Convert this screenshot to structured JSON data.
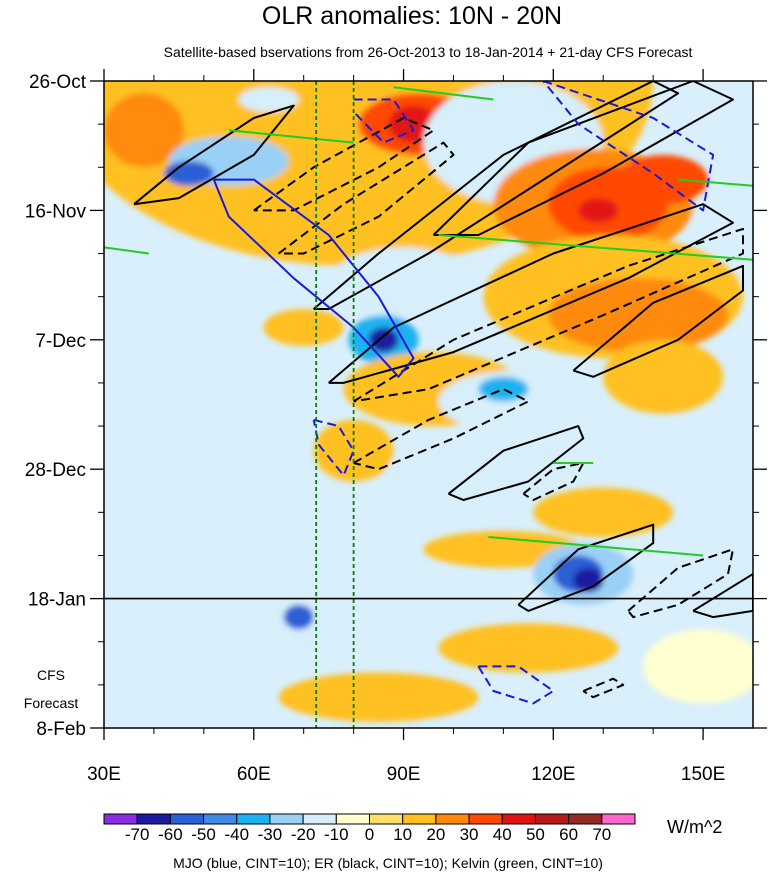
{
  "chart_data": {
    "type": "heatmap",
    "title": "OLR anomalies: 10N - 20N",
    "subtitle": "Satellite-based bservations from 26-Oct-2013 to 18-Jan-2014 + 21-day CFS Forecast",
    "x_tick_labels": [
      "30E",
      "60E",
      "90E",
      "120E",
      "150E"
    ],
    "x_ticks": [
      30,
      60,
      90,
      120,
      150
    ],
    "xlim": [
      30,
      160
    ],
    "y_tick_labels": [
      "26-Oct",
      "16-Nov",
      "7-Dec",
      "28-Dec",
      "18-Jan",
      "8-Feb"
    ],
    "y_ticks_day": [
      0,
      21,
      42,
      63,
      84,
      105
    ],
    "ylim_day": [
      0,
      105
    ],
    "observation_end_label": "18-Jan",
    "observation_end_day": 84,
    "forecast_label_line1": "CFS",
    "forecast_label_line2": "Forecast",
    "reference_lines_lon": [
      72.5,
      80
    ],
    "colorbar_unit": "W/m^2",
    "colorbar_labels": [
      "-70",
      "-60",
      "-50",
      "-40",
      "-30",
      "-20",
      "-10",
      "0",
      "10",
      "20",
      "30",
      "40",
      "50",
      "60",
      "70"
    ],
    "colorbar_colors": [
      "#8b2be2",
      "#1c1ca0",
      "#2a5fd6",
      "#3f8ae6",
      "#1ab2f0",
      "#9ad0f5",
      "#d6effb",
      "#ffffd0",
      "#ffe066",
      "#ffc020",
      "#ff8a0a",
      "#ff4800",
      "#e31212",
      "#b41a1a",
      "#962828",
      "#ff66cc"
    ],
    "footer": "MJO (blue, CINT=10); ER (black, CINT=10); Kelvin (green, CINT=10)",
    "series": [
      {
        "name": "MJO",
        "color": "#1a1ad8"
      },
      {
        "name": "ER",
        "color": "#000000"
      },
      {
        "name": "Kelvin",
        "color": "#22cc22"
      }
    ],
    "anomaly_patches": [
      {
        "lon": 80,
        "day": 0,
        "rx": 60,
        "ry": 30,
        "value": 10
      },
      {
        "lon": 38,
        "day": 8,
        "rx": 8,
        "ry": 6,
        "value": 20
      },
      {
        "lon": 55,
        "day": 13,
        "rx": 12,
        "ry": 4,
        "value": -30
      },
      {
        "lon": 47,
        "day": 15,
        "rx": 5,
        "ry": 2,
        "value": -60
      },
      {
        "lon": 63,
        "day": 3,
        "rx": 6,
        "ry": 2,
        "value": -20
      },
      {
        "lon": 93,
        "day": 7,
        "rx": 12,
        "ry": 5,
        "value": 30
      },
      {
        "lon": 92,
        "day": 7,
        "rx": 5,
        "ry": 3,
        "value": 40
      },
      {
        "lon": 112,
        "day": 10,
        "rx": 18,
        "ry": 10,
        "value": -20
      },
      {
        "lon": 128,
        "day": 20,
        "rx": 20,
        "ry": 9,
        "value": 20
      },
      {
        "lon": 131,
        "day": 20,
        "rx": 12,
        "ry": 6,
        "value": 30
      },
      {
        "lon": 129,
        "day": 21,
        "rx": 4,
        "ry": 2,
        "value": 40
      },
      {
        "lon": 142,
        "day": 16,
        "rx": 9,
        "ry": 4,
        "value": 30
      },
      {
        "lon": 132,
        "day": 35,
        "rx": 26,
        "ry": 10,
        "value": 10
      },
      {
        "lon": 137,
        "day": 38,
        "rx": 18,
        "ry": 6,
        "value": 20
      },
      {
        "lon": 90,
        "day": 33,
        "rx": 15,
        "ry": 6,
        "value": -20
      },
      {
        "lon": 86,
        "day": 42,
        "rx": 7,
        "ry": 4,
        "value": -40
      },
      {
        "lon": 86,
        "day": 42,
        "rx": 3,
        "ry": 2,
        "value": -70
      },
      {
        "lon": 70,
        "day": 40,
        "rx": 8,
        "ry": 3,
        "value": 10
      },
      {
        "lon": 96,
        "day": 50,
        "rx": 18,
        "ry": 6,
        "value": 10
      },
      {
        "lon": 112,
        "day": 52,
        "rx": 15,
        "ry": 5,
        "value": -20
      },
      {
        "lon": 110,
        "day": 50,
        "rx": 5,
        "ry": 2,
        "value": -40
      },
      {
        "lon": 142,
        "day": 48,
        "rx": 12,
        "ry": 6,
        "value": 10
      },
      {
        "lon": 80,
        "day": 60,
        "rx": 8,
        "ry": 5,
        "value": 10
      },
      {
        "lon": 105,
        "day": 63,
        "rx": 18,
        "ry": 4,
        "value": -20
      },
      {
        "lon": 130,
        "day": 70,
        "rx": 14,
        "ry": 4,
        "value": 10
      },
      {
        "lon": 110,
        "day": 76,
        "rx": 16,
        "ry": 3,
        "value": 10
      },
      {
        "lon": 126,
        "day": 80,
        "rx": 10,
        "ry": 5,
        "value": -30
      },
      {
        "lon": 125,
        "day": 80,
        "rx": 5,
        "ry": 3,
        "value": -60
      },
      {
        "lon": 127,
        "day": 81,
        "rx": 3,
        "ry": 2,
        "value": -70
      },
      {
        "lon": 152,
        "day": 82,
        "rx": 10,
        "ry": 3,
        "value": -20
      },
      {
        "lon": 70,
        "day": 87,
        "rx": 8,
        "ry": 5,
        "value": -20
      },
      {
        "lon": 69,
        "day": 87,
        "rx": 3,
        "ry": 2,
        "value": -60
      },
      {
        "lon": 115,
        "day": 92,
        "rx": 18,
        "ry": 4,
        "value": 10
      },
      {
        "lon": 150,
        "day": 95,
        "rx": 12,
        "ry": 6,
        "value": -10
      },
      {
        "lon": 85,
        "day": 100,
        "rx": 20,
        "ry": 4,
        "value": 10
      }
    ],
    "mjo_contours": [
      {
        "path": [
          [
            52,
            16
          ],
          [
            60,
            16
          ],
          [
            75,
            25
          ],
          [
            85,
            35
          ],
          [
            92,
            45
          ],
          [
            89,
            48
          ],
          [
            80,
            40
          ],
          [
            68,
            32
          ],
          [
            55,
            22
          ],
          [
            52,
            16
          ]
        ],
        "dashed": false
      },
      {
        "path": [
          [
            80,
            3
          ],
          [
            88,
            3
          ],
          [
            92,
            8
          ],
          [
            86,
            10
          ],
          [
            80,
            5
          ]
        ],
        "dashed": true
      },
      {
        "path": [
          [
            118,
            0
          ],
          [
            140,
            6
          ],
          [
            152,
            12
          ],
          [
            150,
            21
          ],
          [
            140,
            15
          ],
          [
            125,
            7
          ],
          [
            118,
            0
          ]
        ],
        "dashed": true
      },
      {
        "path": [
          [
            72,
            55
          ],
          [
            77,
            56
          ],
          [
            80,
            60
          ],
          [
            78,
            64
          ],
          [
            73,
            59
          ],
          [
            72,
            55
          ]
        ],
        "dashed": true
      },
      {
        "path": [
          [
            105,
            95
          ],
          [
            113,
            95
          ],
          [
            120,
            99
          ],
          [
            116,
            101
          ],
          [
            108,
            99
          ],
          [
            105,
            95
          ]
        ],
        "dashed": true
      }
    ],
    "er_contours": [
      {
        "path": [
          [
            36,
            20
          ],
          [
            45,
            14
          ],
          [
            60,
            6
          ],
          [
            68,
            4
          ],
          [
            60,
            12
          ],
          [
            45,
            19
          ],
          [
            36,
            20
          ]
        ],
        "dashed": false
      },
      {
        "path": [
          [
            60,
            21
          ],
          [
            72,
            14
          ],
          [
            90,
            6
          ],
          [
            96,
            8
          ],
          [
            85,
            14
          ],
          [
            68,
            21
          ],
          [
            60,
            21
          ]
        ],
        "dashed": true
      },
      {
        "path": [
          [
            65,
            28
          ],
          [
            78,
            20
          ],
          [
            98,
            10
          ],
          [
            100,
            12
          ],
          [
            85,
            22
          ],
          [
            70,
            28
          ],
          [
            65,
            28
          ]
        ],
        "dashed": true
      },
      {
        "path": [
          [
            72,
            37
          ],
          [
            85,
            28
          ],
          [
            110,
            12
          ],
          [
            140,
            0
          ],
          [
            145,
            2
          ],
          [
            120,
            15
          ],
          [
            95,
            28
          ],
          [
            75,
            37
          ],
          [
            72,
            37
          ]
        ],
        "dashed": false
      },
      {
        "path": [
          [
            96,
            25
          ],
          [
            115,
            10
          ],
          [
            148,
            0
          ],
          [
            156,
            3
          ],
          [
            130,
            15
          ],
          [
            105,
            25
          ],
          [
            96,
            25
          ]
        ],
        "dashed": false
      },
      {
        "path": [
          [
            75,
            49
          ],
          [
            88,
            40
          ],
          [
            120,
            28
          ],
          [
            150,
            20
          ],
          [
            156,
            23
          ],
          [
            135,
            32
          ],
          [
            100,
            44
          ],
          [
            78,
            49
          ],
          [
            75,
            49
          ]
        ],
        "dashed": false
      },
      {
        "path": [
          [
            80,
            52
          ],
          [
            100,
            42
          ],
          [
            135,
            30
          ],
          [
            158,
            24
          ],
          [
            158,
            28
          ],
          [
            130,
            38
          ],
          [
            95,
            50
          ],
          [
            80,
            52
          ]
        ],
        "dashed": true
      },
      {
        "path": [
          [
            124,
            47
          ],
          [
            140,
            36
          ],
          [
            158,
            30
          ],
          [
            158,
            34
          ],
          [
            145,
            42
          ],
          [
            128,
            48
          ],
          [
            124,
            47
          ]
        ],
        "dashed": false
      },
      {
        "path": [
          [
            80,
            62
          ],
          [
            95,
            55
          ],
          [
            110,
            50
          ],
          [
            115,
            52
          ],
          [
            100,
            58
          ],
          [
            85,
            63
          ],
          [
            80,
            62
          ]
        ],
        "dashed": true
      },
      {
        "path": [
          [
            99,
            67
          ],
          [
            110,
            60
          ],
          [
            125,
            56
          ],
          [
            126,
            58
          ],
          [
            115,
            65
          ],
          [
            102,
            68
          ],
          [
            99,
            67
          ]
        ],
        "dashed": false
      },
      {
        "path": [
          [
            114,
            67
          ],
          [
            120,
            63
          ],
          [
            126,
            62
          ],
          [
            124,
            65
          ],
          [
            116,
            68
          ],
          [
            114,
            67
          ]
        ],
        "dashed": true
      },
      {
        "path": [
          [
            113,
            85
          ],
          [
            125,
            76
          ],
          [
            140,
            72
          ],
          [
            140,
            75
          ],
          [
            128,
            82
          ],
          [
            115,
            86
          ],
          [
            113,
            85
          ]
        ],
        "dashed": false
      },
      {
        "path": [
          [
            135,
            86
          ],
          [
            145,
            79
          ],
          [
            156,
            76
          ],
          [
            155,
            80
          ],
          [
            145,
            85
          ],
          [
            136,
            87
          ],
          [
            135,
            86
          ]
        ],
        "dashed": true
      },
      {
        "path": [
          [
            148,
            86
          ],
          [
            156,
            82
          ],
          [
            160,
            80
          ],
          [
            160,
            86
          ],
          [
            152,
            87
          ],
          [
            148,
            86
          ]
        ],
        "dashed": false
      },
      {
        "path": [
          [
            126,
            99
          ],
          [
            132,
            97
          ],
          [
            134,
            98
          ],
          [
            128,
            100
          ],
          [
            126,
            99
          ]
        ],
        "dashed": true
      }
    ],
    "kelvin_contours": [
      {
        "path": [
          [
            55,
            8
          ],
          [
            80,
            10
          ]
        ],
        "dashed": false
      },
      {
        "path": [
          [
            88,
            1
          ],
          [
            108,
            3
          ]
        ],
        "dashed": false
      },
      {
        "path": [
          [
            30,
            27
          ],
          [
            39,
            28
          ]
        ],
        "dashed": false
      },
      {
        "path": [
          [
            97,
            25
          ],
          [
            160,
            29
          ]
        ],
        "dashed": false
      },
      {
        "path": [
          [
            145,
            16
          ],
          [
            160,
            17
          ]
        ],
        "dashed": false
      },
      {
        "path": [
          [
            107,
            74
          ],
          [
            150,
            77
          ]
        ],
        "dashed": false
      },
      {
        "path": [
          [
            120,
            62
          ],
          [
            128,
            62
          ]
        ],
        "dashed": false
      }
    ]
  }
}
